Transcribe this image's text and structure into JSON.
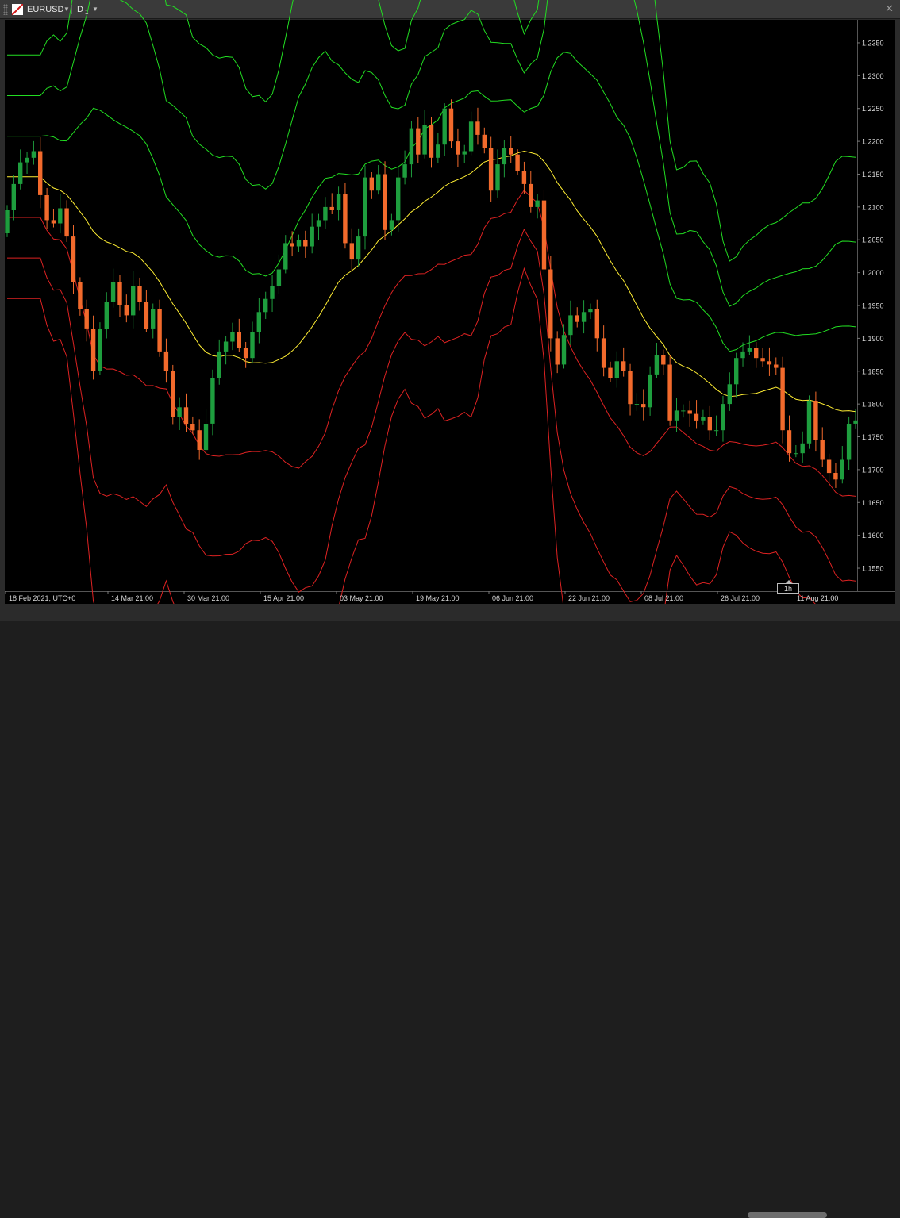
{
  "window": {
    "symbol": "EURUSD",
    "timeframe": "D",
    "timeframe_sub": "1",
    "scale_badge": "1h"
  },
  "icons": {
    "symbol_dropdown": "caret-down-icon",
    "timeframe_dropdown": "caret-down-icon",
    "close": "close-icon",
    "symbol": "flag-icon"
  },
  "colors": {
    "bull": "#1e9e3e",
    "bear": "#f26a2c",
    "upper_bands": "#22dd22",
    "lower_bands": "#dd2222",
    "middle": "#ffee33"
  },
  "chart_data": {
    "type": "candlestick",
    "ylim": [
      1.1515,
      1.2385
    ],
    "y_ticks": [
      "1.2350",
      "1.2300",
      "1.2250",
      "1.2200",
      "1.2150",
      "1.2100",
      "1.2050",
      "1.2000",
      "1.1950",
      "1.1900",
      "1.1850",
      "1.1800",
      "1.1750",
      "1.1700",
      "1.1650",
      "1.1600",
      "1.1550"
    ],
    "x_ticks": [
      "18 Feb 2021, UTC+0",
      "14 Mar 21:00",
      "30 Mar 21:00",
      "15 Apr 21:00",
      "03 May 21:00",
      "19 May 21:00",
      "06 Jun 21:00",
      "22 Jun 21:00",
      "08 Jul 21:00",
      "26 Jul 21:00",
      "11 Aug 21:00"
    ],
    "close": [
      1.2095,
      1.2135,
      1.2168,
      1.2175,
      1.2185,
      1.2118,
      1.208,
      1.2075,
      1.2098,
      1.2055,
      1.1985,
      1.1945,
      1.1915,
      1.185,
      1.1915,
      1.1955,
      1.1985,
      1.195,
      1.1935,
      1.198,
      1.1955,
      1.1915,
      1.1945,
      1.188,
      1.185,
      1.178,
      1.1795,
      1.177,
      1.176,
      1.173,
      1.177,
      1.184,
      1.188,
      1.1895,
      1.191,
      1.1885,
      1.187,
      1.191,
      1.194,
      1.196,
      1.198,
      1.2005,
      1.2045,
      1.204,
      1.205,
      1.204,
      1.207,
      1.208,
      1.21,
      1.2095,
      1.212,
      1.2045,
      1.202,
      1.2055,
      1.2145,
      1.2125,
      1.215,
      1.2065,
      1.208,
      1.2145,
      1.2165,
      1.222,
      1.218,
      1.2225,
      1.2175,
      1.2195,
      1.225,
      1.22,
      1.218,
      1.2185,
      1.223,
      1.221,
      1.219,
      1.2125,
      1.2165,
      1.219,
      1.218,
      1.2155,
      1.2135,
      1.21,
      1.211,
      1.2005,
      1.19,
      1.186,
      1.1905,
      1.1935,
      1.1925,
      1.194,
      1.1945,
      1.19,
      1.1855,
      1.184,
      1.1865,
      1.185,
      1.18,
      1.18,
      1.1795,
      1.1845,
      1.1875,
      1.186,
      1.1775,
      1.179,
      1.179,
      1.1785,
      1.1775,
      1.178,
      1.176,
      1.176,
      1.18,
      1.183,
      1.187,
      1.188,
      1.1885,
      1.187,
      1.1865,
      1.186,
      1.1855,
      1.176,
      1.1725,
      1.1725,
      1.174,
      1.1805,
      1.1745,
      1.1715,
      1.1695,
      1.1685,
      1.1715,
      1.177,
      1.1775
    ]
  }
}
